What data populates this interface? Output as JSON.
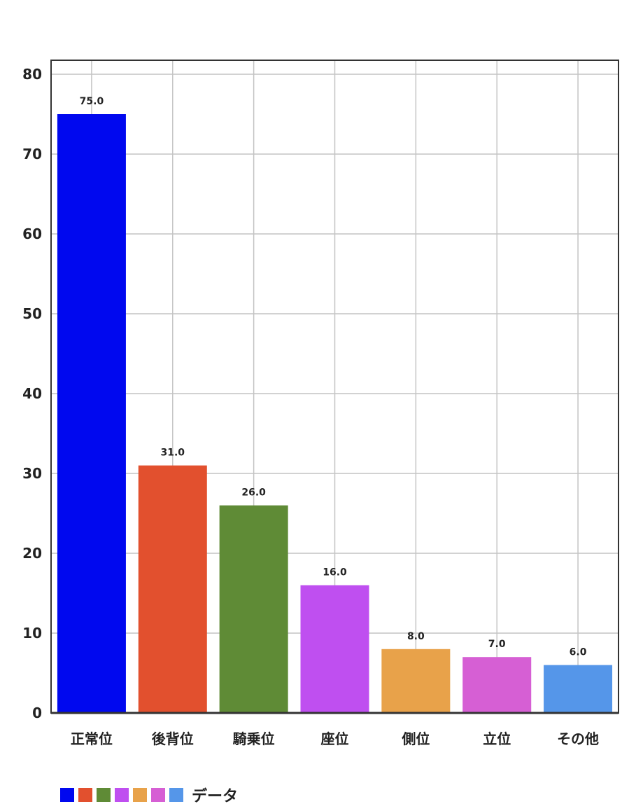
{
  "chart_data": {
    "type": "bar",
    "categories": [
      "正常位",
      "後背位",
      "騎乗位",
      "座位",
      "側位",
      "立位",
      "その他"
    ],
    "series": [
      {
        "name": "データ",
        "values": [
          75.0,
          31.0,
          26.0,
          16.0,
          8.0,
          7.0,
          6.0
        ],
        "data_labels": [
          "75.0",
          "31.0",
          "26.0",
          "16.0",
          "8.0",
          "7.0",
          "6.0"
        ]
      }
    ],
    "bar_colors": [
      "#0008ef",
      "#e2502e",
      "#5f8b36",
      "#bf4ff0",
      "#e8a24a",
      "#d65fd4",
      "#5596e9"
    ],
    "ylim": [
      0,
      80
    ],
    "yticks": [
      0,
      10,
      20,
      30,
      40,
      50,
      60,
      70,
      80
    ],
    "ytick_labels": [
      "0",
      "10",
      "20",
      "30",
      "40",
      "50",
      "60",
      "70",
      "80"
    ],
    "grid": true,
    "legend": {
      "placement": "bottom-left",
      "label": "データ"
    }
  }
}
